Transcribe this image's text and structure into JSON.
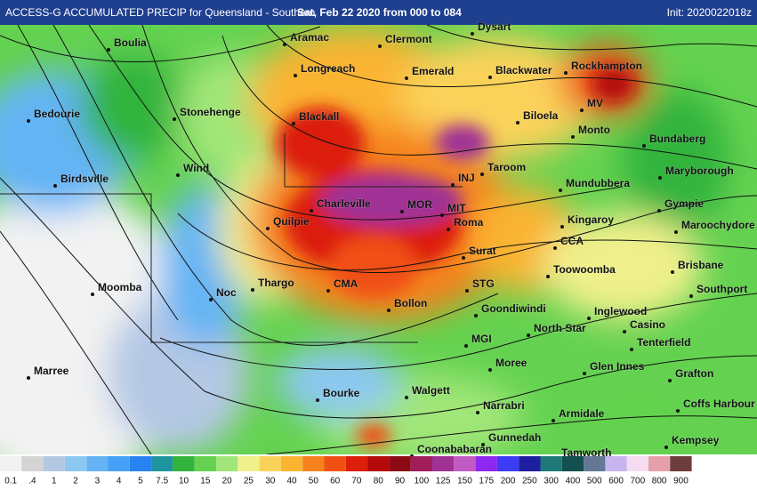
{
  "header": {
    "title": "ACCESS-G ACCUMULATED PRECIP for Queensland - Southern",
    "period": "Sat, Feb 22 2020 from 000 to 084",
    "init": "Init: 2020022018z"
  },
  "places": [
    "Boulia",
    "Aramac",
    "Clermont",
    "Dysart",
    "Longreach",
    "Emerald",
    "Blackwater",
    "Rockhampton",
    "Bedourie",
    "Stonehenge",
    "Blackall",
    "Biloela",
    "MV",
    "Monto",
    "Bundaberg",
    "Wind",
    "Birdsville",
    "Taroom",
    "INJ",
    "Mundubbera",
    "Maryborough",
    "Charleville",
    "MOR",
    "MIT",
    "Roma",
    "Gympie",
    "Quilpie",
    "Kingaroy",
    "Maroochydore",
    "CCA",
    "Surat",
    "Brisbane",
    "Toowoomba",
    "Thargo",
    "CMA",
    "STG",
    "Moomba",
    "Noc",
    "Southport",
    "Bollon",
    "Goondiwindi",
    "Inglewood",
    "North Star",
    "Casino",
    "Tenterfield",
    "MGI",
    "Marree",
    "Moree",
    "Glen Innes",
    "Grafton",
    "Bourke",
    "Walgett",
    "Narrabri",
    "Armidale",
    "Coffs Harbour",
    "Gunnedah",
    "Coonababaran",
    "Tamworth",
    "Kempsey"
  ],
  "legend": {
    "labels": [
      "0.1",
      ".4",
      "1",
      "2",
      "3",
      "4",
      "5",
      "7.5",
      "10",
      "15",
      "20",
      "25",
      "30",
      "40",
      "50",
      "60",
      "70",
      "80",
      "90",
      "100",
      "125",
      "150",
      "175",
      "200",
      "250",
      "300",
      "400",
      "500",
      "600",
      "700",
      "800",
      "900"
    ],
    "colors": [
      "#f2f2f2",
      "#d4d4d4",
      "#b4c8e4",
      "#8cc8f2",
      "#64b4f5",
      "#46a0f5",
      "#2882f0",
      "#1e96a0",
      "#32b43c",
      "#64d250",
      "#a0e678",
      "#f0f08c",
      "#fad25a",
      "#fab432",
      "#f5821e",
      "#f05014",
      "#dc1e0a",
      "#b40a0a",
      "#8c0a14",
      "#a01e5a",
      "#a03296",
      "#c35ac3",
      "#8c28f0",
      "#3c3cf5",
      "#1e1ea0",
      "#1e7878",
      "#145050",
      "#647896",
      "#c8b4f0",
      "#f5dcf0",
      "#e6a0aa",
      "#6e3c3c"
    ]
  }
}
